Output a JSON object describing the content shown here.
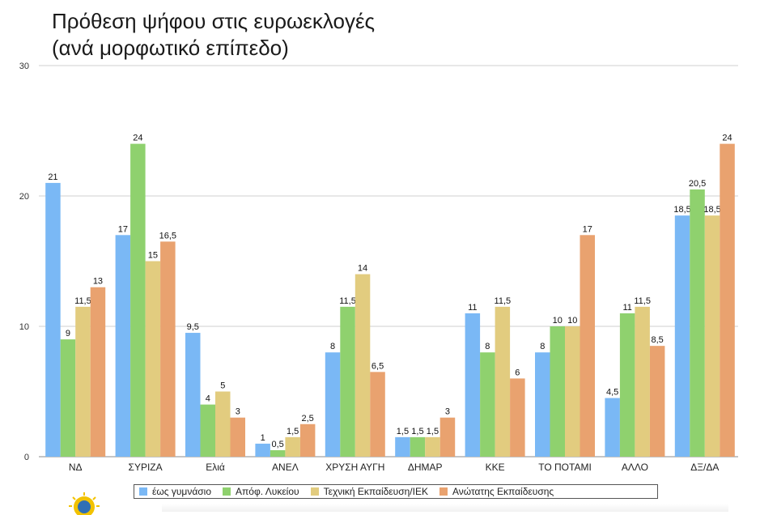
{
  "title_line1": "Πρόθεση ψήφου στις ευρωεκλογές",
  "title_line2": "(ανά μορφωτικό επίπεδο)",
  "chart_data": {
    "type": "bar",
    "categories": [
      "ΝΔ",
      "ΣΥΡΙΖΑ",
      "Ελιά",
      "ΑΝΕΛ",
      "ΧΡΥΣΗ ΑΥΓΗ",
      "ΔΗΜΑΡ",
      "ΚΚΕ",
      "ΤΟ ΠΟΤΑΜΙ",
      "ΑΛΛΟ",
      "ΔΞ/ΔΑ"
    ],
    "series": [
      {
        "name": "έως γυμνάσιο",
        "color": "#7ab8f5",
        "values": [
          21,
          17,
          9.5,
          1,
          8,
          1.5,
          11,
          8,
          4.5,
          18.5
        ],
        "labels": [
          "21",
          "17",
          "9,5",
          "1",
          "8",
          "1,5",
          "11",
          "8",
          "4,5",
          "18,5"
        ]
      },
      {
        "name": "Απόφ. Λυκείου",
        "color": "#8fd16e",
        "values": [
          9,
          24,
          4,
          0.5,
          11.5,
          1.5,
          8,
          10,
          11,
          20.5
        ],
        "labels": [
          "9",
          "24",
          "4",
          "0,5",
          "11,5",
          "1,5",
          "8",
          "10",
          "11",
          "20,5"
        ]
      },
      {
        "name": "Τεχνική Εκπαίδευση/ΙΕΚ",
        "color": "#e2cc7f",
        "values": [
          11.5,
          15,
          5,
          1.5,
          14,
          1.5,
          11.5,
          10,
          11.5,
          18.5
        ],
        "labels": [
          "11,5",
          "15",
          "5",
          "1,5",
          "14",
          "1,5",
          "11,5",
          "10",
          "11,5",
          "18,5"
        ]
      },
      {
        "name": "Ανώτατης Εκπαίδευσης",
        "color": "#e9a26f",
        "values": [
          13,
          16.5,
          3,
          2.5,
          6.5,
          3,
          6,
          17,
          8.5,
          24
        ],
        "labels": [
          "13",
          "16,5",
          "3",
          "2,5",
          "6,5",
          "3",
          "6",
          "17",
          "8,5",
          "24"
        ]
      }
    ],
    "ylim": [
      0,
      30
    ],
    "yticks": [
      0,
      10,
      20,
      30
    ],
    "grid": true,
    "legend": "bottom"
  }
}
